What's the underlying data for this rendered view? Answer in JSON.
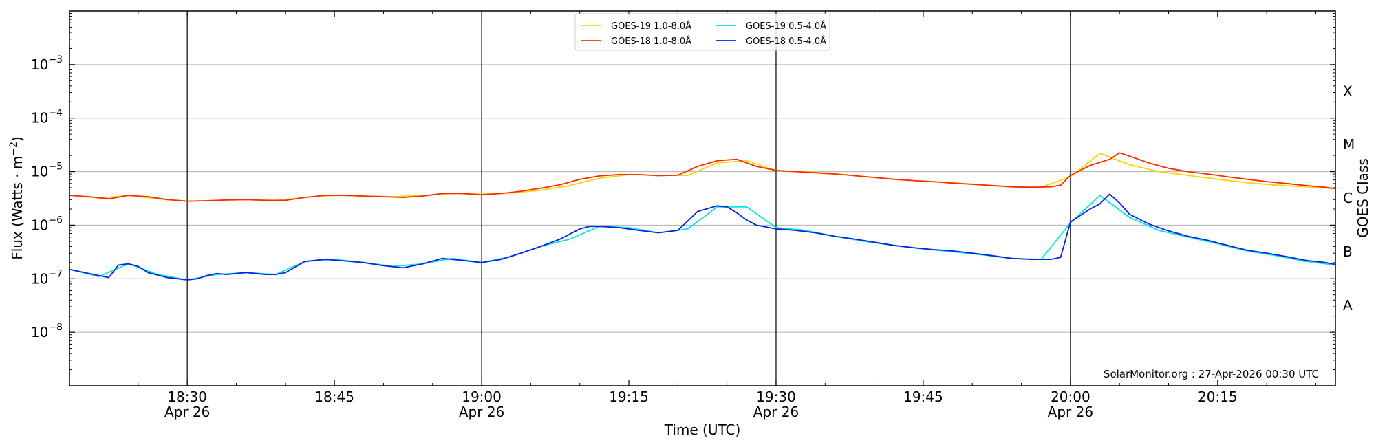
{
  "chart_data": {
    "type": "line",
    "xlabel": "Time (UTC)",
    "ylabel_prefix": "Flux (Watts · m",
    "ylabel_exponent": "−2",
    "ylabel_suffix": ")",
    "right_axis_label": "GOES Class",
    "credit": "SolarMonitor.org : 27-Apr-2026 00:30 UTC",
    "y_scale": "log",
    "ylim": [
      1e-09,
      0.01
    ],
    "xlim": [
      "18:18",
      "20:27"
    ],
    "grid": "horizontal at each decade; vertical lines at half-hour ticks",
    "legend_placement": "top-center",
    "x_ticks": [
      {
        "time": "18:30",
        "label": "18:30",
        "sublabel": "Apr 26",
        "major": true
      },
      {
        "time": "18:45",
        "label": "18:45",
        "sublabel": "",
        "major": false
      },
      {
        "time": "19:00",
        "label": "19:00",
        "sublabel": "Apr 26",
        "major": true
      },
      {
        "time": "19:15",
        "label": "19:15",
        "sublabel": "",
        "major": false
      },
      {
        "time": "19:30",
        "label": "19:30",
        "sublabel": "Apr 26",
        "major": true
      },
      {
        "time": "19:45",
        "label": "19:45",
        "sublabel": "",
        "major": false
      },
      {
        "time": "20:00",
        "label": "20:00",
        "sublabel": "Apr 26",
        "major": true
      },
      {
        "time": "20:15",
        "label": "20:15",
        "sublabel": "",
        "major": false
      }
    ],
    "y_ticks": [
      {
        "value": 1e-08,
        "base": "10",
        "exp": "−8"
      },
      {
        "value": 1e-07,
        "base": "10",
        "exp": "−7"
      },
      {
        "value": 1e-06,
        "base": "10",
        "exp": "−6"
      },
      {
        "value": 1e-05,
        "base": "10",
        "exp": "−5"
      },
      {
        "value": 0.0001,
        "base": "10",
        "exp": "−4"
      },
      {
        "value": 0.001,
        "base": "10",
        "exp": "−3"
      }
    ],
    "goes_classes": [
      {
        "label": "A",
        "value": 3.2e-08
      },
      {
        "label": "B",
        "value": 3.2e-07
      },
      {
        "label": "C",
        "value": 3.2e-06
      },
      {
        "label": "M",
        "value": 3.2e-05
      },
      {
        "label": "X",
        "value": 0.00032
      }
    ],
    "legend": [
      {
        "name": "GOES-19 1.0-8.0Å",
        "color": "#f5d800"
      },
      {
        "name": "GOES-19 0.5-4.0Å",
        "color": "#00e5e5"
      },
      {
        "name": "GOES-18 1.0-8.0Å",
        "color": "#ff2a00"
      },
      {
        "name": "GOES-18 0.5-4.0Å",
        "color": "#0025e0"
      }
    ],
    "series": [
      {
        "name": "GOES-19 1.0-8.0Å",
        "color": "#f5d800",
        "x": [
          "18:18",
          "18:21",
          "18:24",
          "18:27",
          "18:30",
          "18:33",
          "18:36",
          "18:39",
          "18:42",
          "18:45",
          "18:48",
          "18:51",
          "18:54",
          "18:57",
          "19:00",
          "19:03",
          "19:06",
          "19:09",
          "19:12",
          "19:15",
          "19:18",
          "19:21",
          "19:24",
          "19:27",
          "19:30",
          "19:33",
          "19:36",
          "19:39",
          "19:42",
          "19:45",
          "19:48",
          "19:51",
          "19:54",
          "19:57",
          "20:00",
          "20:03",
          "20:06",
          "20:09",
          "20:12",
          "20:15",
          "20:18",
          "20:21",
          "20:24",
          "20:27"
        ],
        "y": [
          3.6e-06,
          3.2e-06,
          3.6e-06,
          3.1e-06,
          2.8e-06,
          2.9e-06,
          3e-06,
          2.9e-06,
          3.3e-06,
          3.6e-06,
          3.5e-06,
          3.4e-06,
          3.6e-06,
          3.9e-06,
          3.8e-06,
          4e-06,
          4.5e-06,
          5.5e-06,
          7.5e-06,
          8.8e-06,
          8.5e-06,
          8.5e-06,
          1.45e-05,
          1.6e-05,
          1.05e-05,
          1e-05,
          9.2e-06,
          8e-06,
          7.2e-06,
          6.6e-06,
          6.2e-06,
          5.7e-06,
          5.2e-06,
          5.1e-06,
          8e-06,
          2.2e-05,
          1.35e-05,
          1e-05,
          8.5e-06,
          7.2e-06,
          6.2e-06,
          5.6e-06,
          5.2e-06,
          4.8e-06
        ]
      },
      {
        "name": "GOES-19 0.5-4.0Å",
        "color": "#00e5e5",
        "x": [
          "18:18",
          "18:21",
          "18:24",
          "18:27",
          "18:30",
          "18:33",
          "18:36",
          "18:39",
          "18:42",
          "18:45",
          "18:48",
          "18:51",
          "18:54",
          "18:57",
          "19:00",
          "19:03",
          "19:06",
          "19:09",
          "19:12",
          "19:15",
          "19:18",
          "19:21",
          "19:24",
          "19:27",
          "19:30",
          "19:33",
          "19:36",
          "19:39",
          "19:42",
          "19:45",
          "19:48",
          "19:51",
          "19:54",
          "19:57",
          "20:00",
          "20:03",
          "20:06",
          "20:09",
          "20:12",
          "20:15",
          "20:18",
          "20:21",
          "20:24",
          "20:27"
        ],
        "y": [
          1.5e-07,
          1.1e-07,
          1.9e-07,
          1.2e-07,
          9.5e-08,
          1.2e-07,
          1.3e-07,
          1.2e-07,
          2.1e-07,
          2.3e-07,
          2e-07,
          1.7e-07,
          1.9e-07,
          2.4e-07,
          2e-07,
          2.6e-07,
          4e-07,
          5.5e-07,
          9.5e-07,
          9e-07,
          7.2e-07,
          8.5e-07,
          2.2e-06,
          2.2e-06,
          9e-07,
          8e-07,
          6.2e-07,
          5e-07,
          4.2e-07,
          3.6e-07,
          3.2e-07,
          2.8e-07,
          2.4e-07,
          2.3e-07,
          1.1e-06,
          3.6e-06,
          1.4e-06,
          8e-07,
          6e-07,
          4.5e-07,
          3.3e-07,
          2.7e-07,
          2.1e-07,
          1.8e-07
        ]
      },
      {
        "name": "GOES-18 1.0-8.0Å",
        "color": "#ff2a00",
        "x": [
          "18:18",
          "18:20",
          "18:22",
          "18:24",
          "18:26",
          "18:28",
          "18:30",
          "18:32",
          "18:34",
          "18:36",
          "18:38",
          "18:40",
          "18:42",
          "18:44",
          "18:46",
          "18:48",
          "18:50",
          "18:52",
          "18:54",
          "18:56",
          "18:58",
          "19:00",
          "19:02",
          "19:04",
          "19:06",
          "19:08",
          "19:10",
          "19:12",
          "19:14",
          "19:16",
          "19:18",
          "19:20",
          "19:22",
          "19:24",
          "19:26",
          "19:28",
          "19:30",
          "19:32",
          "19:34",
          "19:36",
          "19:38",
          "19:40",
          "19:42",
          "19:44",
          "19:46",
          "19:48",
          "19:50",
          "19:52",
          "19:54",
          "19:56",
          "19:58",
          "19:59",
          "20:00",
          "20:02",
          "20:04",
          "20:05",
          "20:06",
          "20:08",
          "20:10",
          "20:12",
          "20:14",
          "20:16",
          "20:18",
          "20:20",
          "20:22",
          "20:24",
          "20:26",
          "20:27"
        ],
        "y": [
          3.6e-06,
          3.4e-06,
          3.1e-06,
          3.6e-06,
          3.4e-06,
          3e-06,
          2.8e-06,
          2.85e-06,
          2.95e-06,
          3e-06,
          2.9e-06,
          2.9e-06,
          3.3e-06,
          3.6e-06,
          3.6e-06,
          3.5e-06,
          3.4e-06,
          3.3e-06,
          3.5e-06,
          3.9e-06,
          3.9e-06,
          3.7e-06,
          3.9e-06,
          4.3e-06,
          4.9e-06,
          5.7e-06,
          7.2e-06,
          8.3e-06,
          8.8e-06,
          8.8e-06,
          8.4e-06,
          8.6e-06,
          1.25e-05,
          1.6e-05,
          1.7e-05,
          1.25e-05,
          1.05e-05,
          1e-05,
          9.5e-06,
          9e-06,
          8.4e-06,
          7.8e-06,
          7.2e-06,
          6.8e-06,
          6.5e-06,
          6.1e-06,
          5.8e-06,
          5.5e-06,
          5.2e-06,
          5.1e-06,
          5.2e-06,
          5.6e-06,
          8.5e-06,
          1.3e-05,
          1.7e-05,
          2.25e-05,
          1.95e-05,
          1.45e-05,
          1.15e-05,
          1e-05,
          9e-06,
          8e-06,
          7.2e-06,
          6.5e-06,
          6e-06,
          5.5e-06,
          5.1e-06,
          4.8e-06
        ]
      },
      {
        "name": "GOES-18 0.5-4.0Å",
        "color": "#0025e0",
        "x": [
          "18:18",
          "18:20",
          "18:22",
          "18:23",
          "18:24",
          "18:25",
          "18:26",
          "18:28",
          "18:30",
          "18:31",
          "18:32",
          "18:33",
          "18:34",
          "18:35",
          "18:36",
          "18:37",
          "18:38",
          "18:39",
          "18:40",
          "18:42",
          "18:44",
          "18:46",
          "18:48",
          "18:50",
          "18:52",
          "18:54",
          "18:56",
          "18:58",
          "19:00",
          "19:02",
          "19:04",
          "19:06",
          "19:08",
          "19:10",
          "19:11",
          "19:12",
          "19:14",
          "19:16",
          "19:18",
          "19:20",
          "19:21",
          "19:22",
          "19:24",
          "19:25",
          "19:26",
          "19:27",
          "19:28",
          "19:30",
          "19:32",
          "19:34",
          "19:36",
          "19:38",
          "19:40",
          "19:42",
          "19:44",
          "19:46",
          "19:48",
          "19:50",
          "19:52",
          "19:54",
          "19:56",
          "19:58",
          "19:59",
          "20:00",
          "20:02",
          "20:03",
          "20:04",
          "20:05",
          "20:06",
          "20:08",
          "20:10",
          "20:12",
          "20:14",
          "20:16",
          "20:18",
          "20:20",
          "20:22",
          "20:24",
          "20:26",
          "20:27"
        ],
        "y": [
          1.5e-07,
          1.25e-07,
          1.05e-07,
          1.8e-07,
          1.9e-07,
          1.7e-07,
          1.3e-07,
          1.05e-07,
          9.5e-08,
          1e-07,
          1.15e-07,
          1.25e-07,
          1.2e-07,
          1.25e-07,
          1.3e-07,
          1.25e-07,
          1.2e-07,
          1.2e-07,
          1.3e-07,
          2.1e-07,
          2.3e-07,
          2.15e-07,
          2e-07,
          1.75e-07,
          1.6e-07,
          1.9e-07,
          2.4e-07,
          2.2e-07,
          2e-07,
          2.3e-07,
          3e-07,
          4e-07,
          5.5e-07,
          8.5e-07,
          9.5e-07,
          9.5e-07,
          9e-07,
          8e-07,
          7.2e-07,
          8e-07,
          1.2e-06,
          1.8e-06,
          2.3e-06,
          2.2e-06,
          1.7e-06,
          1.25e-06,
          1e-06,
          8.5e-07,
          8e-07,
          7.2e-07,
          6.2e-07,
          5.5e-07,
          4.8e-07,
          4.2e-07,
          3.8e-07,
          3.5e-07,
          3.3e-07,
          3e-07,
          2.7e-07,
          2.4e-07,
          2.3e-07,
          2.3e-07,
          2.5e-07,
          1.15e-06,
          2e-06,
          2.5e-06,
          3.8e-06,
          2.6e-06,
          1.6e-06,
          1.05e-06,
          7.8e-07,
          6.2e-07,
          5.2e-07,
          4.2e-07,
          3.4e-07,
          3e-07,
          2.6e-07,
          2.2e-07,
          2e-07,
          1.85e-07
        ]
      }
    ]
  }
}
